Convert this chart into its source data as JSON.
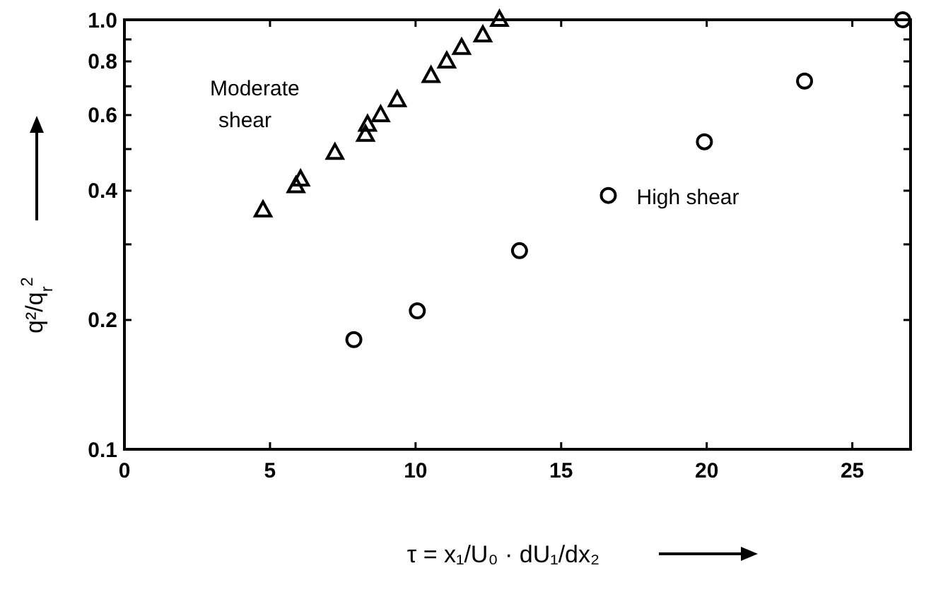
{
  "chart_data": {
    "type": "scatter",
    "xlabel": "τ = x₁/U₀ · dU₁/dx₂",
    "ylabel": "q²/q$_{r}$$^{2}$",
    "log": "y",
    "xlim": [
      0,
      27
    ],
    "xticks": [
      0,
      5,
      10,
      15,
      20,
      25
    ],
    "ylim": [
      0.1,
      1.0
    ],
    "yticks": [
      {
        "value": 0.1,
        "label": "0.1"
      },
      0.2,
      {
        "value": 0.3,
        "label": null
      },
      0.4,
      {
        "value": 0.5,
        "label": null
      },
      0.6,
      {
        "value": 0.7,
        "label": null
      },
      0.8,
      {
        "value": 0.9,
        "label": null
      },
      {
        "value": 1.0,
        "label": "1.0"
      }
    ],
    "grid": false,
    "legend": false,
    "series": [
      {
        "name": "Moderate shear",
        "color": "#000000",
        "marker": "triangle",
        "x": [
          4.76,
          5.89,
          6.05,
          7.23,
          8.28,
          8.35,
          8.8,
          9.37,
          10.53,
          11.07,
          11.58,
          12.31,
          12.88
        ],
        "values": [
          0.36,
          0.41,
          0.425,
          0.49,
          0.54,
          0.57,
          0.6,
          0.65,
          0.74,
          0.8,
          0.86,
          0.92,
          1.0
        ]
      },
      {
        "name": "High shear",
        "color": "#000000",
        "marker": "circle",
        "x": [
          7.88,
          10.06,
          13.57,
          16.62,
          19.92,
          23.36,
          26.73
        ],
        "values": [
          0.18,
          0.21,
          0.29,
          0.39,
          0.52,
          0.72,
          1.0
        ]
      }
    ]
  }
}
